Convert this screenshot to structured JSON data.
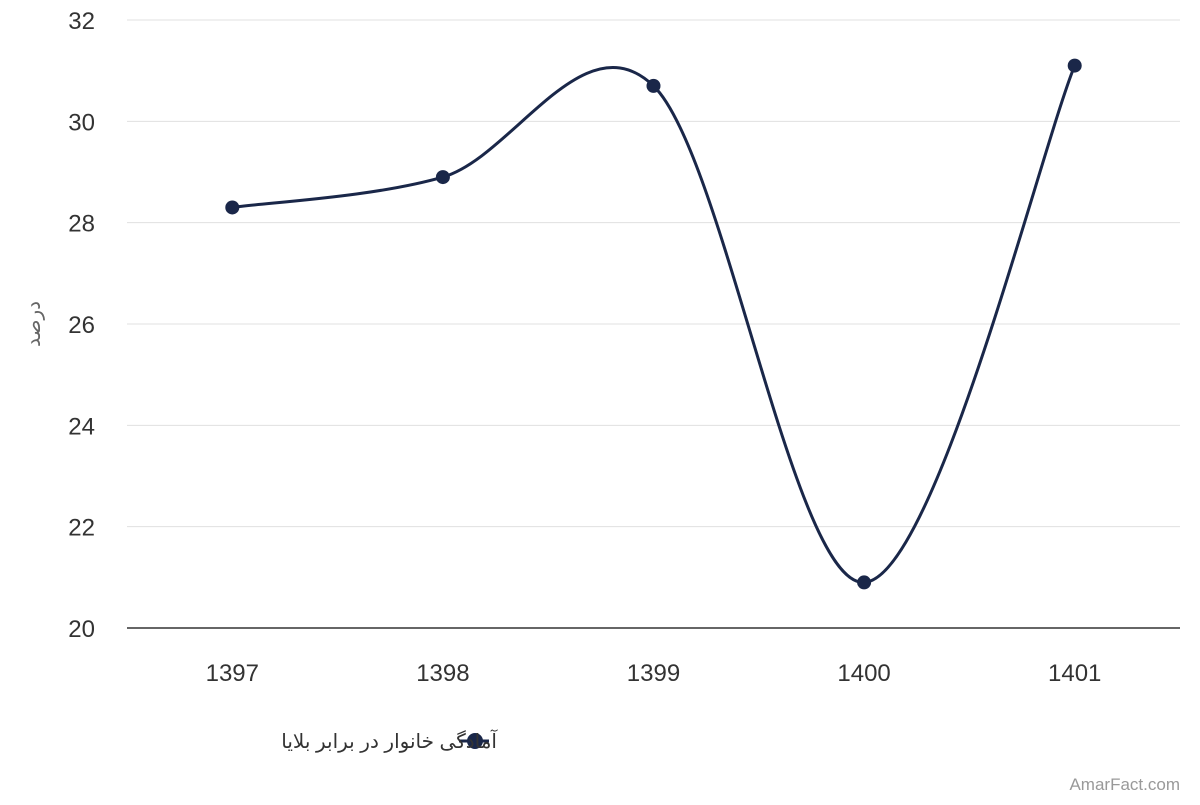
{
  "chart_data": {
    "type": "line",
    "title": "",
    "xlabel": "",
    "ylabel": "درصد",
    "categories": [
      "1397",
      "1398",
      "1399",
      "1400",
      "1401"
    ],
    "series": [
      {
        "name": "آمادگی خانوار در برابر بلایا",
        "color": "#1a2749",
        "values": [
          28.3,
          28.9,
          30.7,
          20.9,
          31.1
        ]
      }
    ],
    "ylim": [
      20,
      32
    ],
    "yticks": [
      20,
      22,
      24,
      26,
      28,
      30,
      32
    ],
    "grid": true,
    "legend_position": "bottom-center",
    "line_style": "smooth"
  },
  "credit": "AmarFact.com"
}
